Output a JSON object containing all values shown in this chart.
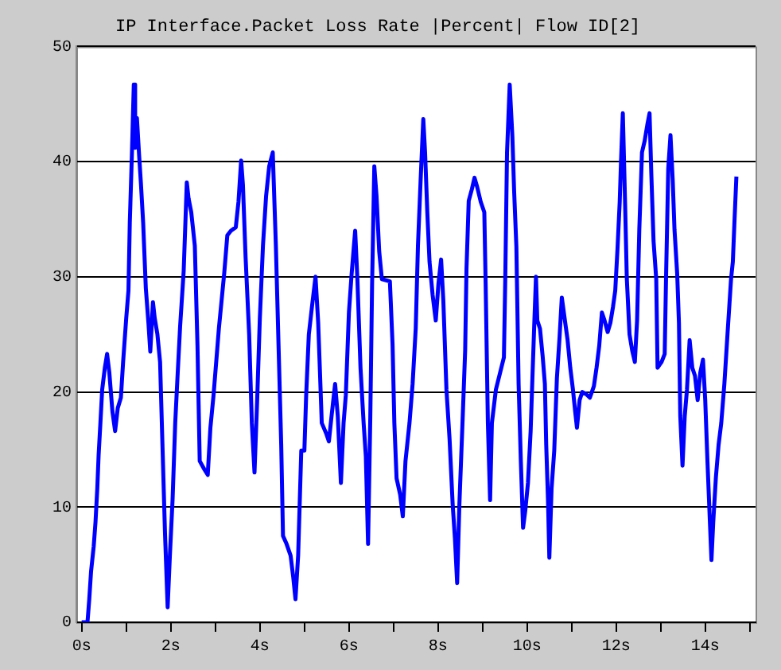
{
  "chart_data": {
    "type": "line",
    "title": "IP Interface.Packet Loss Rate |Percent| Flow ID[2]",
    "x": [
      0,
      0.13,
      0.17,
      0.21,
      0.27,
      0.31,
      0.35,
      0.38,
      0.42,
      0.46,
      0.52,
      0.57,
      0.62,
      0.69,
      0.75,
      0.81,
      0.88,
      0.93,
      1.0,
      1.05,
      1.08,
      1.13,
      1.17,
      1.2,
      1.24,
      1.29,
      1.33,
      1.38,
      1.44,
      1.5,
      1.54,
      1.6,
      1.64,
      1.7,
      1.76,
      1.82,
      1.87,
      1.93,
      1.98,
      2.04,
      2.1,
      2.15,
      2.21,
      2.29,
      2.36,
      2.4,
      2.46,
      2.54,
      2.6,
      2.65,
      2.75,
      2.83,
      2.89,
      2.96,
      3.02,
      3.08,
      3.14,
      3.2,
      3.27,
      3.35,
      3.46,
      3.52,
      3.58,
      3.62,
      3.68,
      3.76,
      3.82,
      3.88,
      3.94,
      4.0,
      4.07,
      4.14,
      4.21,
      4.29,
      4.36,
      4.42,
      4.48,
      4.52,
      4.6,
      4.69,
      4.75,
      4.8,
      4.86,
      4.93,
      5.0,
      5.04,
      5.1,
      5.17,
      5.25,
      5.31,
      5.35,
      5.39,
      5.49,
      5.55,
      5.61,
      5.69,
      5.75,
      5.82,
      5.88,
      5.93,
      6.0,
      6.06,
      6.1,
      6.14,
      6.19,
      6.26,
      6.33,
      6.38,
      6.43,
      6.48,
      6.52,
      6.57,
      6.62,
      6.68,
      6.74,
      6.92,
      6.98,
      7.02,
      7.07,
      7.15,
      7.21,
      7.27,
      7.36,
      7.43,
      7.5,
      7.55,
      7.61,
      7.67,
      7.71,
      7.76,
      7.81,
      7.88,
      7.95,
      8.01,
      8.07,
      8.12,
      8.19,
      8.26,
      8.33,
      8.38,
      8.43,
      8.48,
      8.55,
      8.61,
      8.64,
      8.69,
      8.76,
      8.82,
      8.88,
      8.96,
      9.04,
      9.07,
      9.12,
      9.17,
      9.21,
      9.3,
      9.39,
      9.48,
      9.51,
      9.55,
      9.61,
      9.67,
      9.71,
      9.76,
      9.81,
      9.86,
      9.91,
      9.96,
      10.02,
      10.08,
      10.12,
      10.16,
      10.2,
      10.23,
      10.29,
      10.35,
      10.4,
      10.43,
      10.47,
      10.5,
      10.55,
      10.61,
      10.67,
      10.73,
      10.78,
      10.85,
      10.91,
      10.97,
      11.03,
      11.08,
      11.12,
      11.18,
      11.24,
      11.33,
      11.41,
      11.5,
      11.56,
      11.62,
      11.68,
      11.74,
      11.81,
      11.87,
      11.93,
      11.98,
      12.03,
      12.08,
      12.11,
      12.15,
      12.2,
      12.24,
      12.3,
      12.36,
      12.42,
      12.47,
      12.52,
      12.58,
      12.64,
      12.7,
      12.75,
      12.79,
      12.84,
      12.9,
      12.93,
      13.02,
      13.09,
      13.12,
      13.17,
      13.22,
      13.27,
      13.31,
      13.37,
      13.41,
      13.44,
      13.49,
      13.54,
      13.59,
      13.65,
      13.71,
      13.77,
      13.83,
      13.89,
      13.95,
      14.0,
      14.05,
      14.1,
      14.14,
      14.18,
      14.24,
      14.3,
      14.36,
      14.43,
      14.5,
      14.58,
      14.62,
      14.66,
      14.7
    ],
    "series": [
      {
        "color": "#0000ff",
        "values": [
          0,
          0,
          2,
          4.4,
          6.6,
          8.7,
          11.6,
          14.5,
          17.3,
          20.2,
          22.1,
          23.3,
          21.7,
          18.3,
          16.6,
          18.6,
          19.5,
          22.6,
          26.4,
          28.8,
          34.7,
          41,
          46.7,
          41.2,
          43.8,
          40.5,
          38.1,
          34.7,
          29,
          25.9,
          23.5,
          27.8,
          26.4,
          25,
          22.6,
          14.5,
          7.8,
          1.3,
          5.8,
          10.6,
          17.3,
          21.2,
          25.7,
          30.5,
          38.2,
          36.8,
          35.6,
          32.7,
          24,
          14,
          13.3,
          12.8,
          16.9,
          19.7,
          22.6,
          25.5,
          27.9,
          30.3,
          33.6,
          34,
          34.3,
          36.5,
          40.1,
          38,
          31.7,
          25,
          17.3,
          13,
          19.3,
          26.4,
          32.7,
          37,
          39.6,
          40.8,
          32.7,
          24,
          15.4,
          7.5,
          6.8,
          5.8,
          3.9,
          2,
          5.8,
          14.9,
          14.9,
          19.7,
          25,
          27.4,
          30,
          26,
          21.7,
          17.3,
          16.4,
          15.7,
          17.9,
          20.7,
          17.9,
          12.1,
          17.3,
          19.7,
          26.9,
          30.2,
          32.1,
          34,
          29.8,
          22.1,
          17.3,
          14.4,
          6.8,
          17.8,
          29.3,
          39.6,
          37,
          32.2,
          29.8,
          29.6,
          24.1,
          17.3,
          12.5,
          11.1,
          9.2,
          14,
          17.3,
          20.7,
          25.5,
          32.7,
          38.4,
          43.7,
          40.8,
          35.6,
          31.3,
          28.4,
          26.2,
          29.4,
          31.5,
          27.9,
          20.2,
          15.9,
          10.2,
          7.3,
          3.4,
          10.2,
          17.3,
          23.6,
          30.7,
          36.6,
          37.6,
          38.6,
          37.8,
          36.5,
          35.6,
          29.4,
          17.3,
          10.6,
          17.3,
          20.2,
          21.6,
          23,
          29.7,
          40.8,
          46.7,
          42.2,
          37.4,
          32.6,
          20.7,
          14,
          8.2,
          9.7,
          12.1,
          16.6,
          21.2,
          25.7,
          30,
          26.2,
          25.5,
          23.1,
          20.7,
          15.4,
          10.6,
          5.6,
          11.6,
          14.9,
          21.2,
          24.8,
          28.2,
          26.2,
          24.5,
          22.1,
          20.2,
          18.3,
          16.9,
          19.3,
          20,
          19.8,
          19.5,
          20.5,
          22.1,
          24,
          26.9,
          26.2,
          25.2,
          26,
          27.4,
          28.8,
          32.4,
          36.5,
          40.1,
          44.2,
          36.5,
          29.8,
          25,
          23.6,
          22.6,
          26.2,
          34.1,
          40.8,
          41.8,
          43.2,
          44.2,
          38.9,
          33.1,
          29.8,
          22.1,
          22.6,
          23.3,
          29.8,
          39.4,
          42.3,
          38.4,
          34.1,
          30.3,
          26,
          17.9,
          13.6,
          17.9,
          20.2,
          24.5,
          22.1,
          21.4,
          19.3,
          21.7,
          22.8,
          19.3,
          14,
          9.2,
          5.4,
          8.7,
          12.6,
          15.4,
          17.3,
          20.7,
          25,
          29.8,
          31.3,
          35.1,
          38.7
        ]
      }
    ],
    "xlim": [
      -0.12,
      15.13
    ],
    "xticks": [
      {
        "value": 0,
        "label": "0s"
      },
      {
        "value": 1,
        "label": null
      },
      {
        "value": 2,
        "label": "2s"
      },
      {
        "value": 3,
        "label": null
      },
      {
        "value": 4,
        "label": "4s"
      },
      {
        "value": 5,
        "label": null
      },
      {
        "value": 6,
        "label": "6s"
      },
      {
        "value": 7,
        "label": null
      },
      {
        "value": 8,
        "label": "8s"
      },
      {
        "value": 9,
        "label": null
      },
      {
        "value": 10,
        "label": "10s"
      },
      {
        "value": 11,
        "label": null
      },
      {
        "value": 12,
        "label": "12s"
      },
      {
        "value": 13,
        "label": null
      },
      {
        "value": 14,
        "label": "14s"
      },
      {
        "value": 15,
        "label": null
      }
    ],
    "ylim": [
      0,
      50
    ],
    "yticks": [
      0,
      10,
      20,
      30,
      40,
      50
    ],
    "grid": "y",
    "legend": false,
    "marker": "none",
    "line_style": "solid"
  }
}
